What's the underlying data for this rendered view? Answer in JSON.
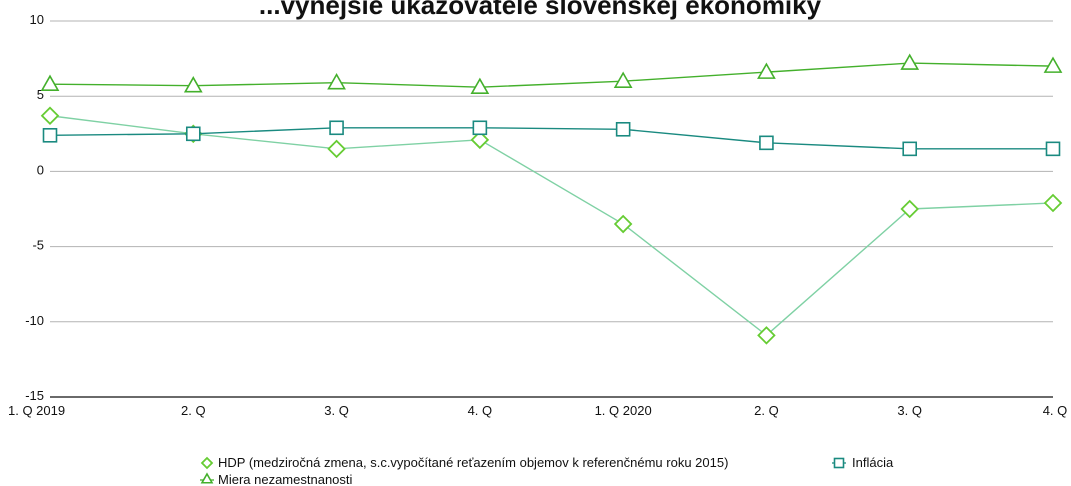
{
  "chart_data": {
    "type": "line",
    "title": "...výnejšie ukazovatele slovenskej ekonomiky",
    "categories": [
      "1. Q 2019",
      "2. Q",
      "3. Q",
      "4. Q",
      "1. Q 2020",
      "2. Q",
      "3. Q",
      "4. Q"
    ],
    "ylim": [
      -15,
      10
    ],
    "yticks": [
      -15,
      -10,
      -5,
      0,
      5,
      10
    ],
    "grid": true,
    "legend_position": "bottom",
    "series": [
      {
        "name": "HDP (medziročná zmena, s.c.vypočítané reťazením objemov k referenčnému roku 2015)",
        "marker": "diamond",
        "color": "#7fd1a4",
        "marker_color": "#66cc33",
        "values": [
          3.7,
          2.5,
          1.5,
          2.1,
          -3.5,
          -10.9,
          -2.5,
          -2.1
        ]
      },
      {
        "name": "Inflácia",
        "marker": "square",
        "color": "#1a8a80",
        "marker_color": "#1a8a80",
        "values": [
          2.4,
          2.5,
          2.9,
          2.9,
          2.8,
          1.9,
          1.5,
          1.5
        ]
      },
      {
        "name": "Miera nezamestnanosti",
        "marker": "triangle",
        "color": "#44b02c",
        "marker_color": "#44b02c",
        "values": [
          5.8,
          5.7,
          5.9,
          5.6,
          6.0,
          6.6,
          7.2,
          7.0
        ]
      }
    ]
  }
}
